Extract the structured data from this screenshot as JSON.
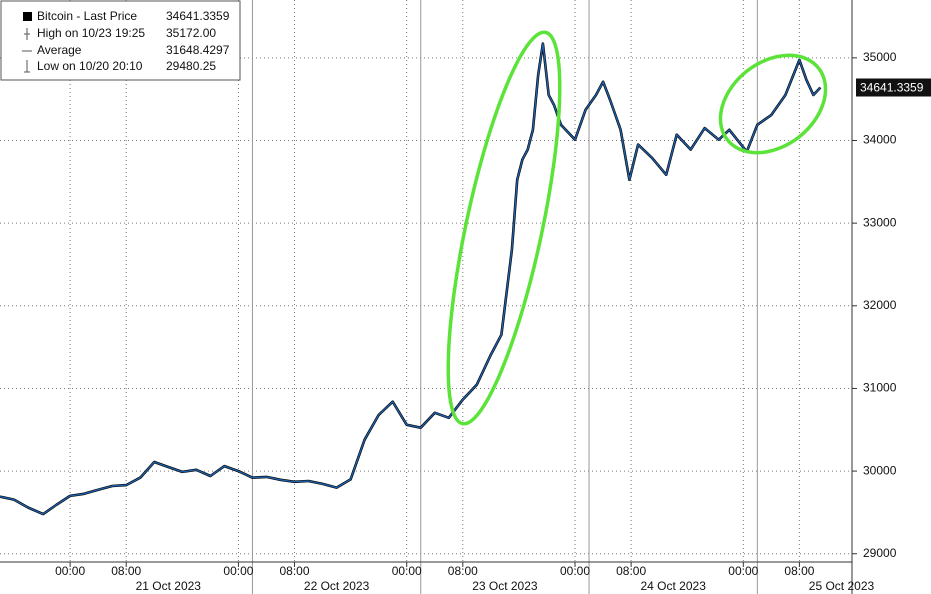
{
  "chart_data": {
    "type": "line",
    "legend": {
      "title": "Bitcoin - Last Price",
      "last_price": 34641.3359,
      "high_label": "High on 10/23 19:25",
      "high": {
        "value": 35172,
        "label": "35172.00"
      },
      "average_label": "Average",
      "average": 31648.4297,
      "low_label": "Low on 10/20 20:10",
      "low": 29480.25
    },
    "x": [
      "2023-10-20 14:00",
      "2023-10-20 16:00",
      "2023-10-20 18:00",
      "2023-10-20 20:10",
      "2023-10-20 22:00",
      "2023-10-21 00:00",
      "2023-10-21 02:00",
      "2023-10-21 04:00",
      "2023-10-21 06:00",
      "2023-10-21 08:00",
      "2023-10-21 10:00",
      "2023-10-21 12:00",
      "2023-10-21 14:00",
      "2023-10-21 16:00",
      "2023-10-21 18:00",
      "2023-10-21 20:00",
      "2023-10-21 22:00",
      "2023-10-22 00:00",
      "2023-10-22 02:00",
      "2023-10-22 04:00",
      "2023-10-22 06:00",
      "2023-10-22 08:00",
      "2023-10-22 10:00",
      "2023-10-22 12:00",
      "2023-10-22 14:00",
      "2023-10-22 16:00",
      "2023-10-22 18:00",
      "2023-10-22 20:00",
      "2023-10-22 22:00",
      "2023-10-23 00:00",
      "2023-10-23 02:00",
      "2023-10-23 04:00",
      "2023-10-23 06:00",
      "2023-10-23 08:00",
      "2023-10-23 10:00",
      "2023-10-23 12:00",
      "2023-10-23 13:30",
      "2023-10-23 15:00",
      "2023-10-23 15:45",
      "2023-10-23 16:30",
      "2023-10-23 17:15",
      "2023-10-23 18:00",
      "2023-10-23 18:45",
      "2023-10-23 19:25",
      "2023-10-23 20:15",
      "2023-10-23 21:00",
      "2023-10-23 22:00",
      "2023-10-24 00:00",
      "2023-10-24 01:30",
      "2023-10-24 03:00",
      "2023-10-24 04:00",
      "2023-10-24 05:00",
      "2023-10-24 06:30",
      "2023-10-24 07:45",
      "2023-10-24 09:00",
      "2023-10-24 11:00",
      "2023-10-24 13:00",
      "2023-10-24 14:30",
      "2023-10-24 16:30",
      "2023-10-24 18:30",
      "2023-10-24 20:30",
      "2023-10-24 22:00",
      "2023-10-25 00:30",
      "2023-10-25 02:00",
      "2023-10-25 04:00",
      "2023-10-25 06:00",
      "2023-10-25 08:00",
      "2023-10-25 09:00",
      "2023-10-25 10:00",
      "2023-10-25 11:00"
    ],
    "series": [
      {
        "name": "Bitcoin - Last Price",
        "color": "#1f5fa8",
        "values": [
          29690,
          29655,
          29560,
          29480,
          29590,
          29700,
          29725,
          29775,
          29820,
          29830,
          29920,
          30110,
          30050,
          29990,
          30015,
          29940,
          30060,
          30000,
          29920,
          29930,
          29895,
          29870,
          29880,
          29845,
          29800,
          29900,
          30380,
          30680,
          30840,
          30560,
          30525,
          30705,
          30645,
          30865,
          31045,
          31410,
          31650,
          32680,
          33525,
          33770,
          33890,
          34130,
          34795,
          35172,
          34550,
          34430,
          34190,
          34010,
          34370,
          34550,
          34710,
          34490,
          34130,
          33525,
          33950,
          33790,
          33585,
          34070,
          33890,
          34150,
          34010,
          34130,
          33865,
          34190,
          34310,
          34550,
          34975,
          34735,
          34550,
          34641.3359
        ]
      }
    ],
    "xlim": [
      "2023-10-20 14:00",
      "2023-10-25 15:30"
    ],
    "xticks": [
      {
        "value": "2023-10-21 00:00",
        "label": "00:00"
      },
      {
        "value": "2023-10-21 08:00",
        "label": "08:00"
      },
      {
        "value": "2023-10-22 00:00",
        "label": "00:00"
      },
      {
        "value": "2023-10-22 08:00",
        "label": "08:00"
      },
      {
        "value": "2023-10-23 00:00",
        "label": "00:00"
      },
      {
        "value": "2023-10-23 08:00",
        "label": "08:00"
      },
      {
        "value": "2023-10-24 00:00",
        "label": "00:00"
      },
      {
        "value": "2023-10-24 08:00",
        "label": "08:00"
      },
      {
        "value": "2023-10-25 00:00",
        "label": "00:00"
      },
      {
        "value": "2023-10-25 08:00",
        "label": "08:00"
      }
    ],
    "date_labels": [
      {
        "value": "2023-10-21",
        "label": "21 Oct 2023"
      },
      {
        "value": "2023-10-22",
        "label": "22 Oct 2023"
      },
      {
        "value": "2023-10-23",
        "label": "23 Oct 2023"
      },
      {
        "value": "2023-10-24",
        "label": "24 Oct 2023"
      },
      {
        "value": "2023-10-25",
        "label": "25 Oct 2023"
      }
    ],
    "ylim": [
      28900,
      35700
    ],
    "yticks": [
      29000,
      30000,
      31000,
      32000,
      33000,
      34000,
      35000
    ],
    "grid": true
  }
}
